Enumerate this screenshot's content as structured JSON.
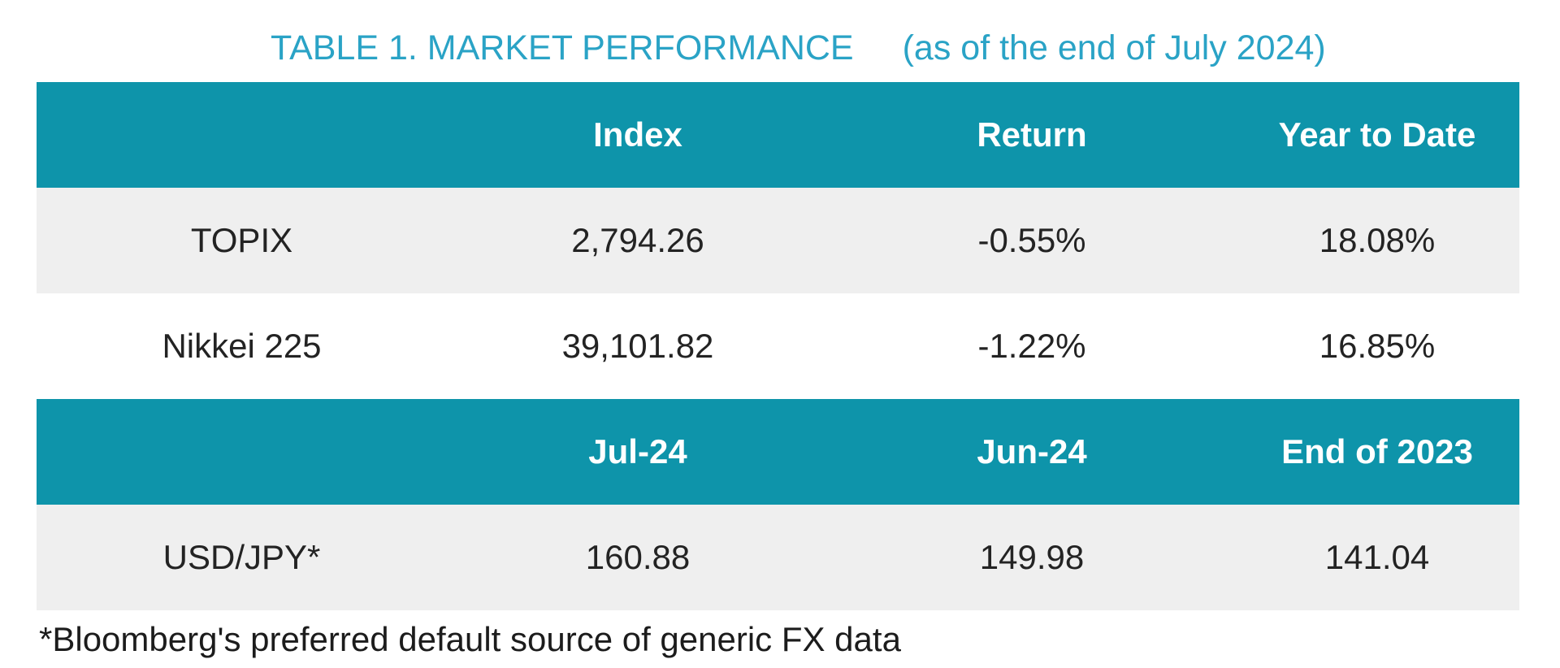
{
  "title": {
    "main": "TABLE 1. MARKET PERFORMANCE",
    "suffix": "(as of the end of July 2024)"
  },
  "colors": {
    "header_band_teal": "#0E94AA",
    "title_teal": "#2AA3C6",
    "alt_row_gray": "#EFEFEF",
    "body_text": "#232323",
    "header_text": "#FFFFFF"
  },
  "market_table": {
    "header": [
      "",
      "Index",
      "Return",
      "Year to Date"
    ],
    "rows": [
      {
        "cells": [
          "TOPIX",
          "2,794.26",
          "-0.55%",
          "18.08%"
        ]
      },
      {
        "cells": [
          "Nikkei 225",
          "39,101.82",
          "-1.22%",
          "16.85%"
        ]
      }
    ]
  },
  "fx_table": {
    "header": [
      "",
      "Jul-24",
      "Jun-24",
      "End of 2023"
    ],
    "rows": [
      {
        "cells": [
          "USD/JPY*",
          "160.88",
          "149.98",
          "141.04"
        ]
      }
    ]
  },
  "footnote": "*Bloomberg's preferred default source of generic FX data",
  "chart_data": [
    {
      "type": "table",
      "title": "TABLE 1. MARKET PERFORMANCE (as of the end of July 2024)",
      "columns": [
        "",
        "Index",
        "Return",
        "Year to Date"
      ],
      "rows": [
        [
          "TOPIX",
          2794.26,
          "-0.55%",
          "18.08%"
        ],
        [
          "Nikkei 225",
          39101.82,
          "-1.22%",
          "16.85%"
        ]
      ]
    },
    {
      "type": "table",
      "columns": [
        "",
        "Jul-24",
        "Jun-24",
        "End of 2023"
      ],
      "rows": [
        [
          "USD/JPY*",
          160.88,
          149.98,
          141.04
        ]
      ],
      "footnote": "*Bloomberg's preferred default source of generic FX data"
    }
  ]
}
